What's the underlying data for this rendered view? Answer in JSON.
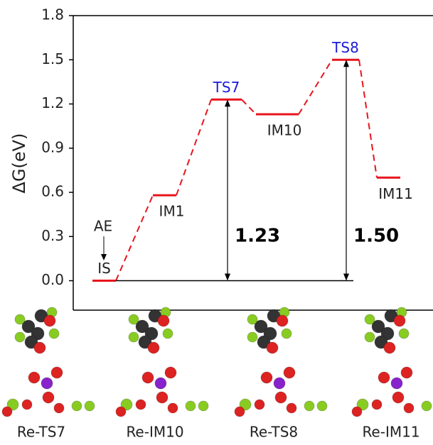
{
  "chart_data": {
    "type": "energy_profile",
    "y_label": "ΔG(eV)",
    "ylim": [
      -0.2,
      1.8
    ],
    "yticks": [
      {
        "value": 0,
        "label": "0.0"
      },
      {
        "value": 0.3,
        "label": "0.3"
      },
      {
        "value": 0.6,
        "label": "0.6"
      },
      {
        "value": 0.9,
        "label": "0.9"
      },
      {
        "value": 1.2,
        "label": "1.2"
      },
      {
        "value": 1.5,
        "label": "1.5"
      },
      {
        "value": 1.8,
        "label": "1.8"
      }
    ],
    "categories": [
      "IS",
      "IM1",
      "TS7",
      "IM10",
      "TS8",
      "IM11"
    ],
    "values": [
      0,
      0.58,
      1.23,
      1.13,
      1.5,
      0.7
    ],
    "color": "#e8141c",
    "label_colors": [
      "#222222",
      "#222222",
      "#1a1adb",
      "#222222",
      "#1a1adb",
      "#222222"
    ],
    "annotation": "AE",
    "barriers": [
      1.23,
      {
        "value": 1.5,
        "label": "1.50"
      }
    ],
    "structures": [
      "Re-TS7",
      "Re-IM10",
      "Re-TS8",
      "Re-IM11"
    ]
  }
}
